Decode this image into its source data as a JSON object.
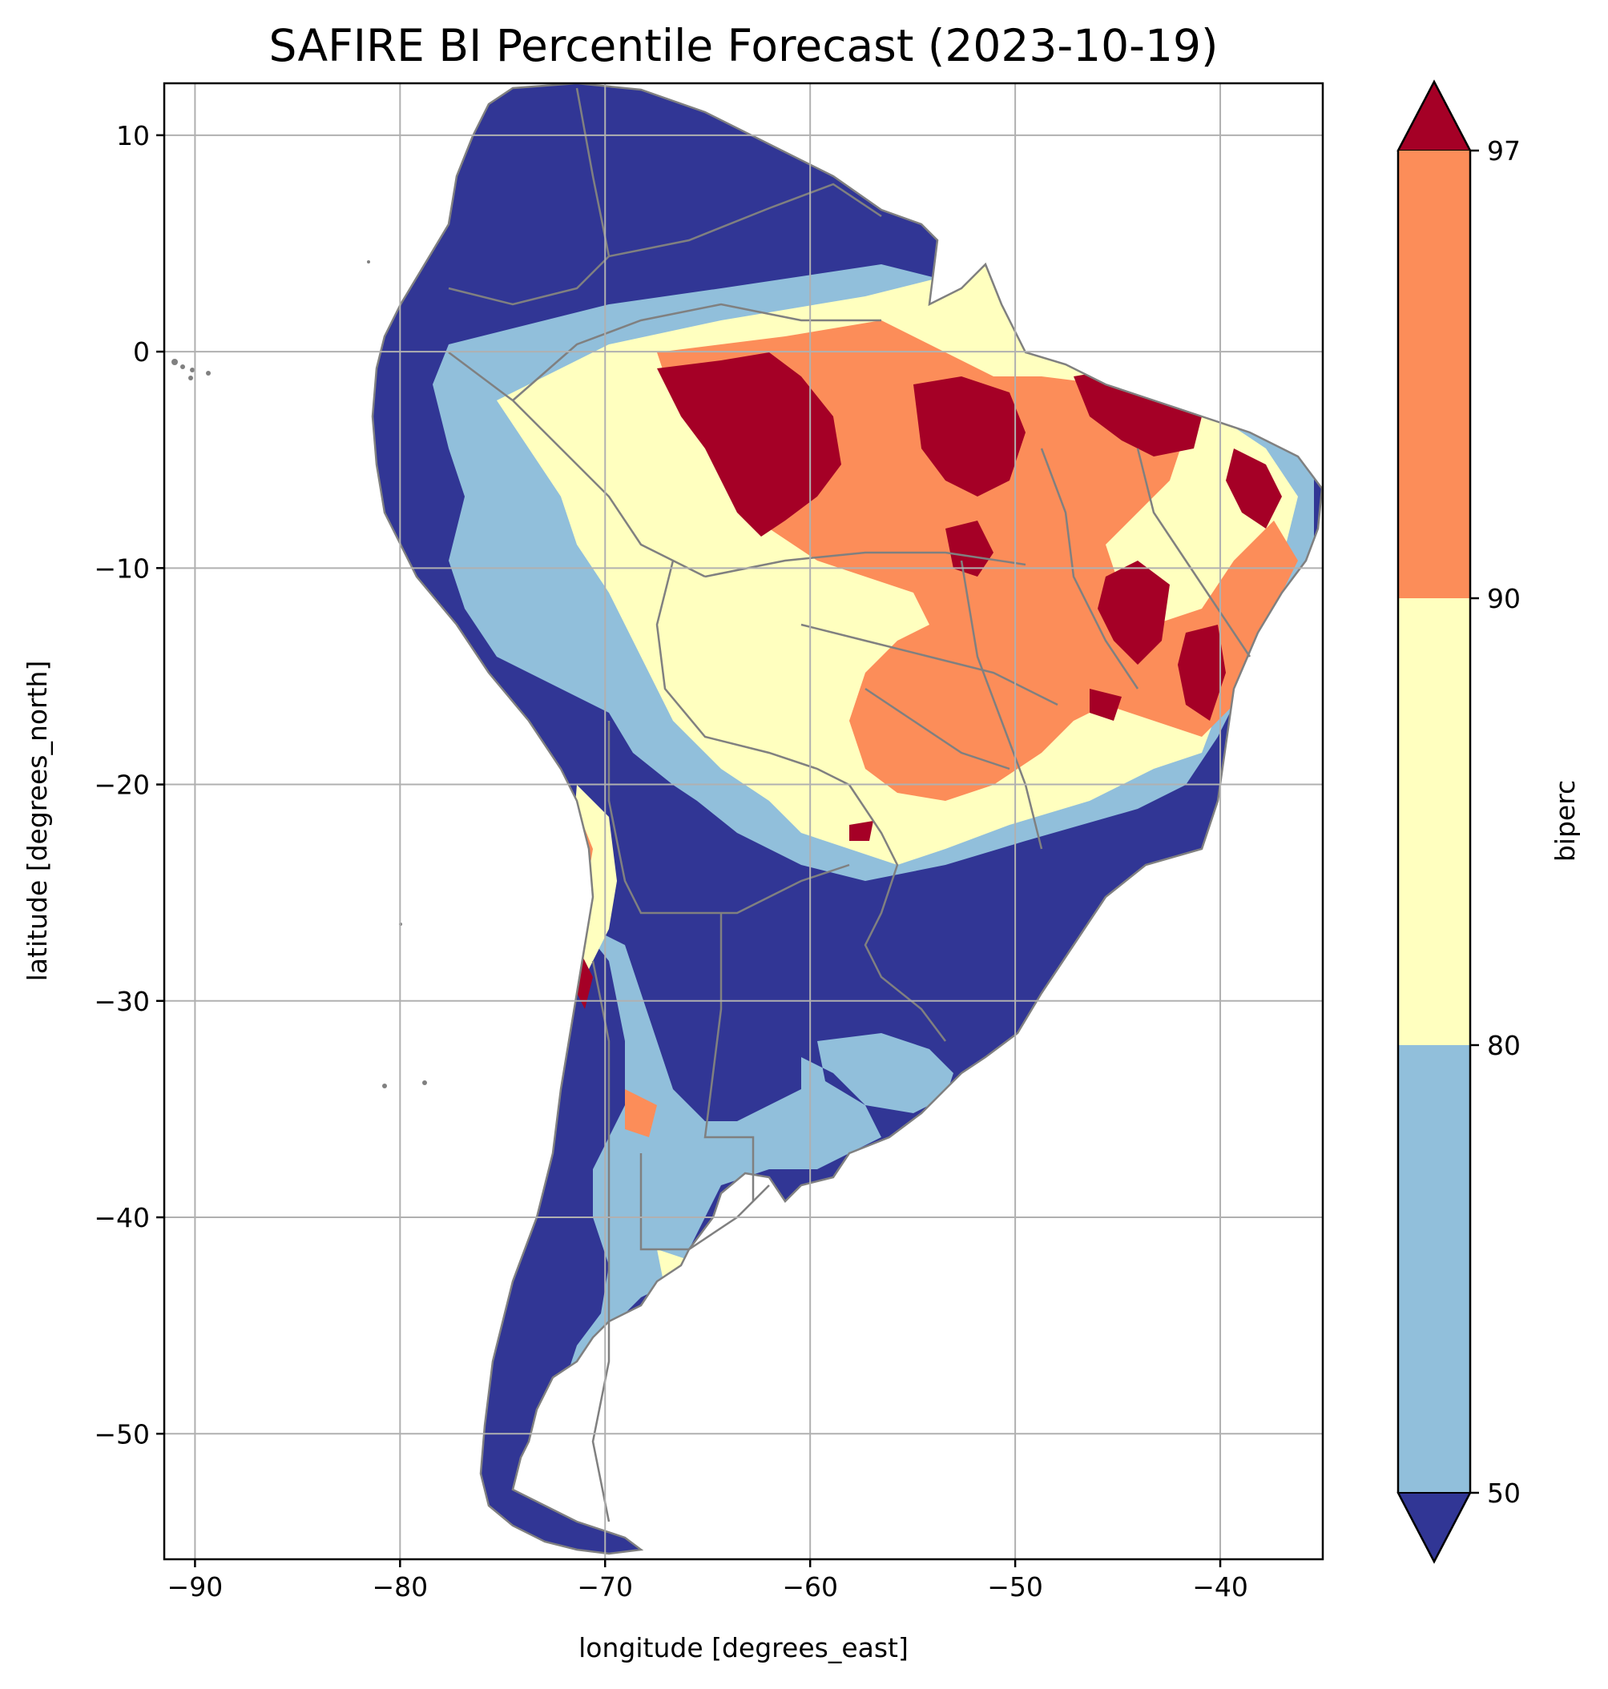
{
  "title": "SAFIRE BI Percentile Forecast (2023-10-19)",
  "map": {
    "xlabel": "longitude [degrees_east]",
    "ylabel": "latitude [degrees_north]",
    "xlim": [
      -91.5,
      -35
    ],
    "ylim": [
      -55.8,
      12.4
    ],
    "grid": true,
    "xticks": [
      -90,
      -80,
      -70,
      -60,
      -50,
      -40
    ],
    "yticks": [
      10,
      0,
      -10,
      -20,
      -30,
      -40,
      -50
    ],
    "xtick_labels": [
      "−90",
      "−80",
      "−70",
      "−60",
      "−50",
      "−40"
    ],
    "ytick_labels": [
      "10",
      "0",
      "−10",
      "−20",
      "−30",
      "−40",
      "−50"
    ],
    "border_color": "#808080",
    "grid_color": "#b0b0b0"
  },
  "colorbar": {
    "label": "biperc",
    "ticks": [
      50,
      80,
      90,
      97
    ],
    "tick_labels": [
      "50",
      "80",
      "90",
      "97"
    ],
    "colors": {
      "under_50": "#313695",
      "50_80": "#91bfdb",
      "80_90": "#ffffbf",
      "90_97": "#fc8d59",
      "over_97": "#a50026"
    }
  }
}
